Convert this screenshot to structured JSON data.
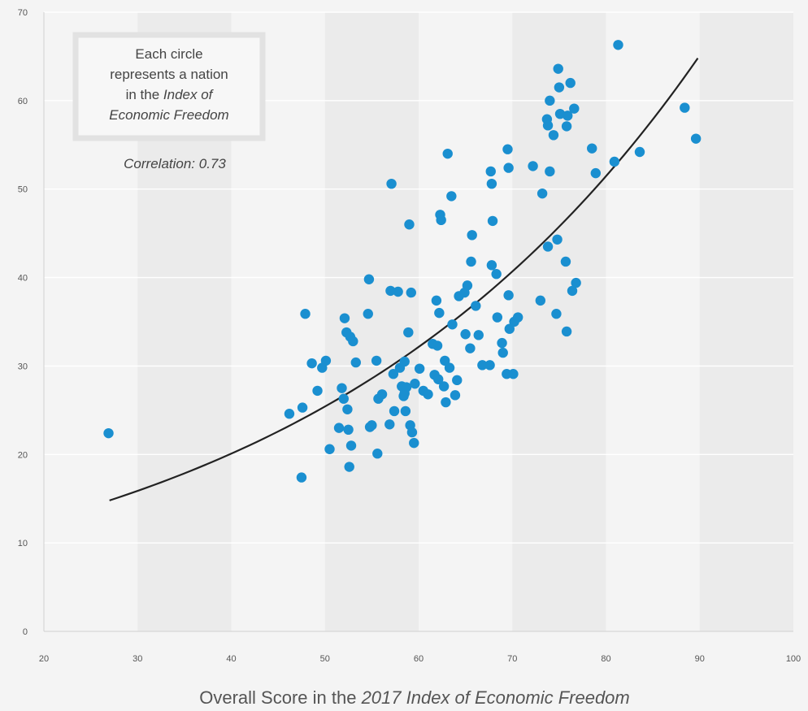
{
  "chart_data": {
    "type": "scatter",
    "xlabel_parts": [
      {
        "text": "Overall Score in the ",
        "italic": false
      },
      {
        "text": "2017 Index of Economic Freedom",
        "italic": true
      }
    ],
    "ylabel": "",
    "xlim": [
      20,
      100
    ],
    "ylim": [
      0,
      70
    ],
    "xticks": [
      20,
      30,
      40,
      50,
      60,
      70,
      80,
      90,
      100
    ],
    "yticks": [
      0,
      10,
      20,
      30,
      40,
      50,
      60,
      70
    ],
    "grid": true,
    "annotation": {
      "lines": [
        [
          {
            "text": "Each circle",
            "italic": false
          }
        ],
        [
          {
            "text": "represents a nation",
            "italic": false
          }
        ],
        [
          {
            "text": "in the ",
            "italic": false
          },
          {
            "text": "Index of",
            "italic": true
          }
        ],
        [
          {
            "text": "Economic Freedom",
            "italic": true
          }
        ]
      ],
      "correlation": "Correlation: 0.73"
    },
    "colors": {
      "points": "#1a8fd0",
      "trend": "#222222",
      "band_light": "#f4f4f4",
      "band_dark": "#ebebeb",
      "gridline": "#ffffff"
    },
    "trend_line": {
      "type": "exponential",
      "x_range": [
        27,
        89.8
      ],
      "points": [
        [
          27,
          14.8
        ],
        [
          60,
          31.3
        ],
        [
          89.8,
          64.8
        ]
      ]
    },
    "points": [
      [
        26.9,
        22.4
      ],
      [
        46.2,
        24.6
      ],
      [
        47.5,
        17.4
      ],
      [
        47.6,
        25.3
      ],
      [
        47.9,
        35.9
      ],
      [
        48.6,
        30.3
      ],
      [
        49.2,
        27.2
      ],
      [
        49.7,
        29.8
      ],
      [
        50.1,
        30.6
      ],
      [
        50.5,
        20.6
      ],
      [
        51.5,
        23.0
      ],
      [
        51.8,
        27.5
      ],
      [
        52.0,
        26.3
      ],
      [
        52.1,
        35.4
      ],
      [
        52.3,
        33.8
      ],
      [
        52.4,
        25.1
      ],
      [
        52.5,
        22.8
      ],
      [
        52.6,
        18.6
      ],
      [
        52.7,
        33.3
      ],
      [
        52.8,
        21.0
      ],
      [
        53.0,
        32.8
      ],
      [
        53.3,
        30.4
      ],
      [
        54.6,
        35.9
      ],
      [
        54.7,
        39.8
      ],
      [
        54.8,
        23.1
      ],
      [
        55.0,
        23.3
      ],
      [
        55.5,
        30.6
      ],
      [
        55.6,
        20.1
      ],
      [
        55.7,
        26.3
      ],
      [
        56.1,
        26.8
      ],
      [
        56.9,
        23.4
      ],
      [
        57.0,
        38.5
      ],
      [
        57.1,
        50.6
      ],
      [
        57.3,
        29.1
      ],
      [
        57.4,
        24.9
      ],
      [
        57.8,
        38.4
      ],
      [
        58.0,
        29.8
      ],
      [
        58.2,
        27.7
      ],
      [
        58.4,
        26.6
      ],
      [
        58.5,
        30.5
      ],
      [
        58.5,
        26.9
      ],
      [
        58.6,
        24.9
      ],
      [
        58.7,
        27.6
      ],
      [
        58.9,
        33.8
      ],
      [
        59.0,
        46.0
      ],
      [
        59.1,
        23.3
      ],
      [
        59.2,
        38.3
      ],
      [
        59.3,
        22.5
      ],
      [
        59.5,
        21.3
      ],
      [
        59.6,
        28.0
      ],
      [
        60.1,
        29.7
      ],
      [
        60.5,
        27.2
      ],
      [
        61.0,
        26.8
      ],
      [
        61.5,
        32.5
      ],
      [
        61.7,
        29.0
      ],
      [
        61.9,
        37.4
      ],
      [
        62.0,
        32.3
      ],
      [
        62.1,
        28.5
      ],
      [
        62.2,
        36.0
      ],
      [
        62.3,
        47.1
      ],
      [
        62.4,
        46.5
      ],
      [
        62.7,
        27.7
      ],
      [
        62.8,
        30.6
      ],
      [
        62.9,
        25.9
      ],
      [
        63.1,
        54.0
      ],
      [
        63.3,
        29.8
      ],
      [
        63.5,
        49.2
      ],
      [
        63.6,
        34.7
      ],
      [
        63.9,
        26.7
      ],
      [
        64.1,
        28.4
      ],
      [
        64.3,
        37.9
      ],
      [
        64.9,
        38.3
      ],
      [
        65.0,
        33.6
      ],
      [
        65.2,
        39.1
      ],
      [
        65.5,
        32.0
      ],
      [
        65.6,
        41.8
      ],
      [
        65.7,
        44.8
      ],
      [
        66.1,
        36.8
      ],
      [
        66.4,
        33.5
      ],
      [
        66.8,
        30.1
      ],
      [
        67.6,
        30.1
      ],
      [
        67.7,
        52.0
      ],
      [
        67.8,
        50.6
      ],
      [
        67.8,
        41.4
      ],
      [
        67.9,
        46.4
      ],
      [
        68.3,
        40.4
      ],
      [
        68.4,
        35.5
      ],
      [
        68.9,
        32.6
      ],
      [
        69.0,
        31.5
      ],
      [
        69.4,
        29.1
      ],
      [
        69.5,
        54.5
      ],
      [
        69.6,
        52.4
      ],
      [
        69.6,
        38.0
      ],
      [
        69.7,
        34.2
      ],
      [
        70.1,
        29.1
      ],
      [
        70.2,
        35.0
      ],
      [
        70.6,
        35.5
      ],
      [
        72.2,
        52.6
      ],
      [
        73.0,
        37.4
      ],
      [
        73.2,
        49.5
      ],
      [
        73.7,
        57.9
      ],
      [
        73.8,
        57.2
      ],
      [
        73.8,
        43.5
      ],
      [
        74.0,
        60.0
      ],
      [
        74.0,
        52.0
      ],
      [
        74.4,
        56.1
      ],
      [
        74.7,
        35.9
      ],
      [
        74.8,
        44.3
      ],
      [
        74.9,
        63.6
      ],
      [
        75.0,
        61.5
      ],
      [
        75.1,
        58.5
      ],
      [
        75.7,
        41.8
      ],
      [
        75.8,
        33.9
      ],
      [
        75.8,
        57.1
      ],
      [
        75.9,
        58.3
      ],
      [
        76.2,
        62.0
      ],
      [
        76.4,
        38.5
      ],
      [
        76.6,
        59.1
      ],
      [
        76.8,
        39.4
      ],
      [
        78.5,
        54.6
      ],
      [
        78.9,
        51.8
      ],
      [
        80.9,
        53.1
      ],
      [
        81.3,
        66.3
      ],
      [
        83.6,
        54.2
      ],
      [
        88.4,
        59.2
      ],
      [
        89.6,
        55.7
      ]
    ]
  }
}
